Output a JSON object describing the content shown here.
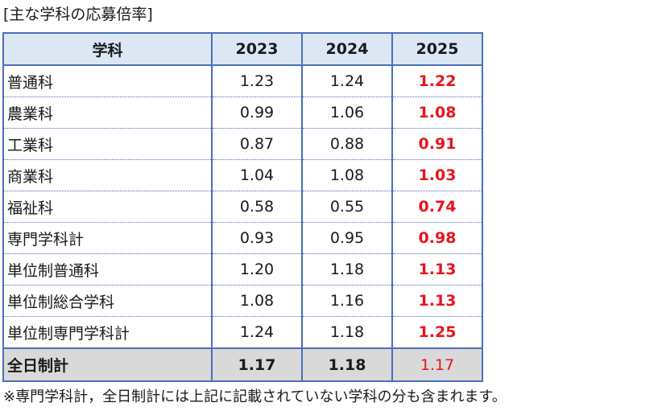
{
  "caption": "[主な学科の応募倍率]",
  "table": {
    "headers": [
      "学科",
      "2023",
      "2024",
      "2025"
    ],
    "rows": [
      {
        "name": "普通科",
        "v2023": "1.23",
        "v2024": "1.24",
        "v2025": "1.22"
      },
      {
        "name": "農業科",
        "v2023": "0.99",
        "v2024": "1.06",
        "v2025": "1.08"
      },
      {
        "name": "工業科",
        "v2023": "0.87",
        "v2024": "0.88",
        "v2025": "0.91"
      },
      {
        "name": "商業科",
        "v2023": "1.04",
        "v2024": "1.08",
        "v2025": "1.03"
      },
      {
        "name": "福祉科",
        "v2023": "0.58",
        "v2024": "0.55",
        "v2025": "0.74"
      },
      {
        "name": "専門学科計",
        "v2023": "0.93",
        "v2024": "0.95",
        "v2025": "0.98"
      },
      {
        "name": "単位制普通科",
        "v2023": "1.20",
        "v2024": "1.18",
        "v2025": "1.13"
      },
      {
        "name": "単位制総合学科",
        "v2023": "1.08",
        "v2024": "1.16",
        "v2025": "1.13"
      },
      {
        "name": "単位制専門学科計",
        "v2023": "1.24",
        "v2024": "1.18",
        "v2025": "1.25"
      }
    ],
    "total": {
      "name": "全日制計",
      "v2023": "1.17",
      "v2024": "1.18",
      "v2025": "1.17"
    }
  },
  "note": "※専門学科計，全日制計には上記に記載されていない学科の分も含まれます。",
  "colors": {
    "border": "#4a6fbf",
    "header_bg": "#dbe7f5",
    "total_bg": "#d9d9d9",
    "highlight": "#e8141c"
  }
}
